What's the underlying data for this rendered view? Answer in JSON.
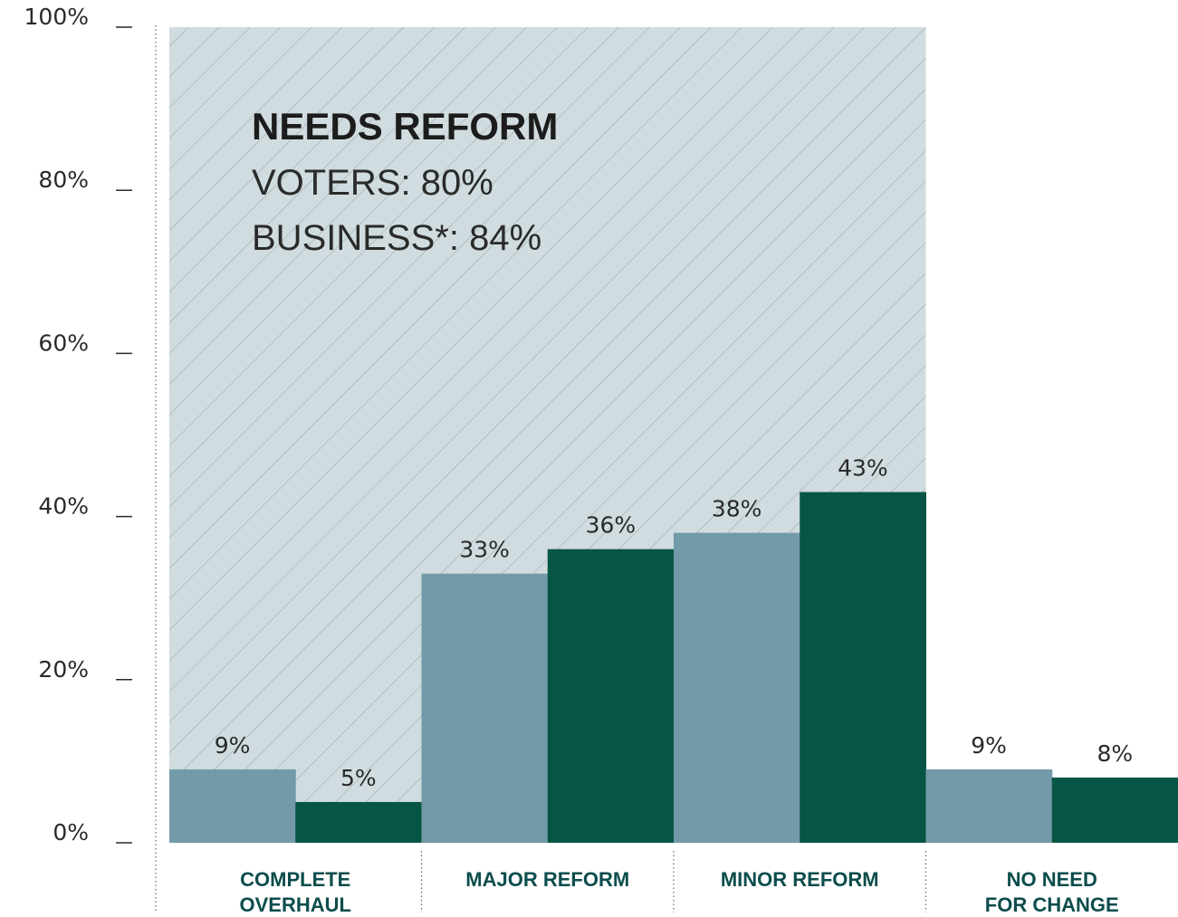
{
  "chart_data": {
    "type": "bar",
    "categories": [
      [
        "COMPLETE",
        "OVERHAUL"
      ],
      [
        "MAJOR REFORM"
      ],
      [
        "MINOR REFORM"
      ],
      [
        "NO NEED",
        "FOR CHANGE"
      ]
    ],
    "series": [
      {
        "values": [
          9,
          33,
          38,
          9
        ],
        "labels": [
          "9%",
          "33%",
          "38%",
          "9%"
        ]
      },
      {
        "values": [
          5,
          36,
          43,
          8
        ],
        "labels": [
          "5%",
          "36%",
          "43%",
          "8%"
        ]
      }
    ],
    "ylim": [
      0,
      100
    ],
    "yticks": [
      0,
      20,
      40,
      60,
      80,
      100
    ],
    "ytick_labels": [
      "0%",
      "20%",
      "40%",
      "60%",
      "80%",
      "100%"
    ],
    "grid": false,
    "shaded_region": {
      "categories": [
        "COMPLETE OVERHAUL",
        "MAJOR REFORM",
        "MINOR REFORM"
      ],
      "title": "NEEDS REFORM",
      "lines": [
        "VOTERS: 80%",
        "BUSINESS*: 84%"
      ]
    },
    "colors": {
      "series_1": "#739aa8",
      "series_2": "#075645",
      "region_fill": "#d0dcdf",
      "region_hatch": "#a9b6b8",
      "category_text": "#0c4d4c"
    }
  }
}
